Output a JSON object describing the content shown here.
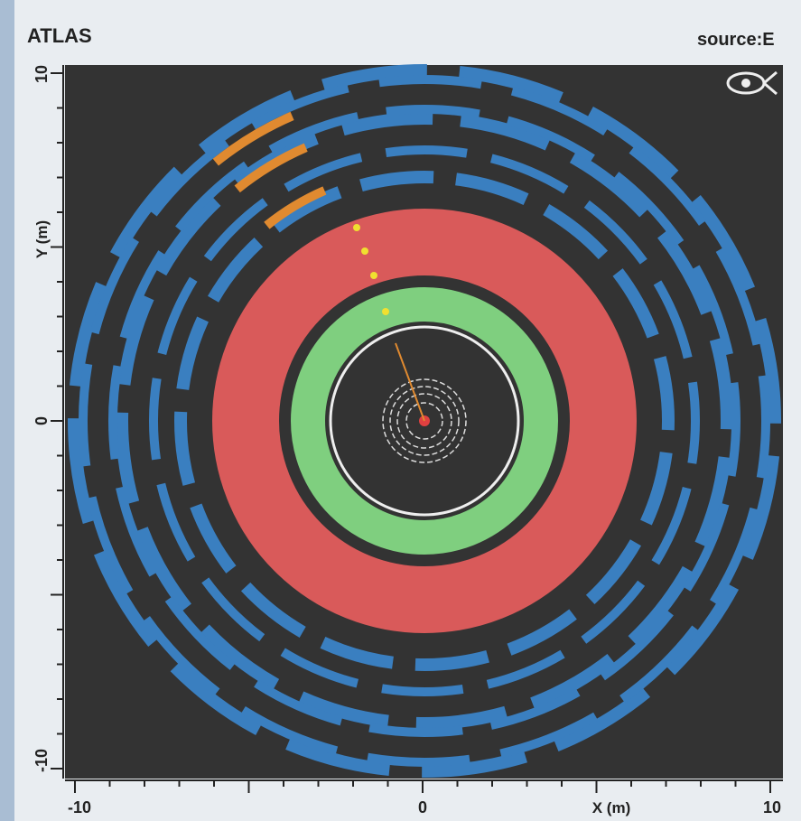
{
  "header": {
    "title": "ATLAS",
    "source": "source:E"
  },
  "axes": {
    "y": {
      "label": "Y (m)",
      "ticks": [
        "10",
        "0",
        "-10"
      ]
    },
    "x": {
      "label": "X (m)",
      "ticks": [
        "-10",
        "0",
        "10"
      ]
    }
  }
}
